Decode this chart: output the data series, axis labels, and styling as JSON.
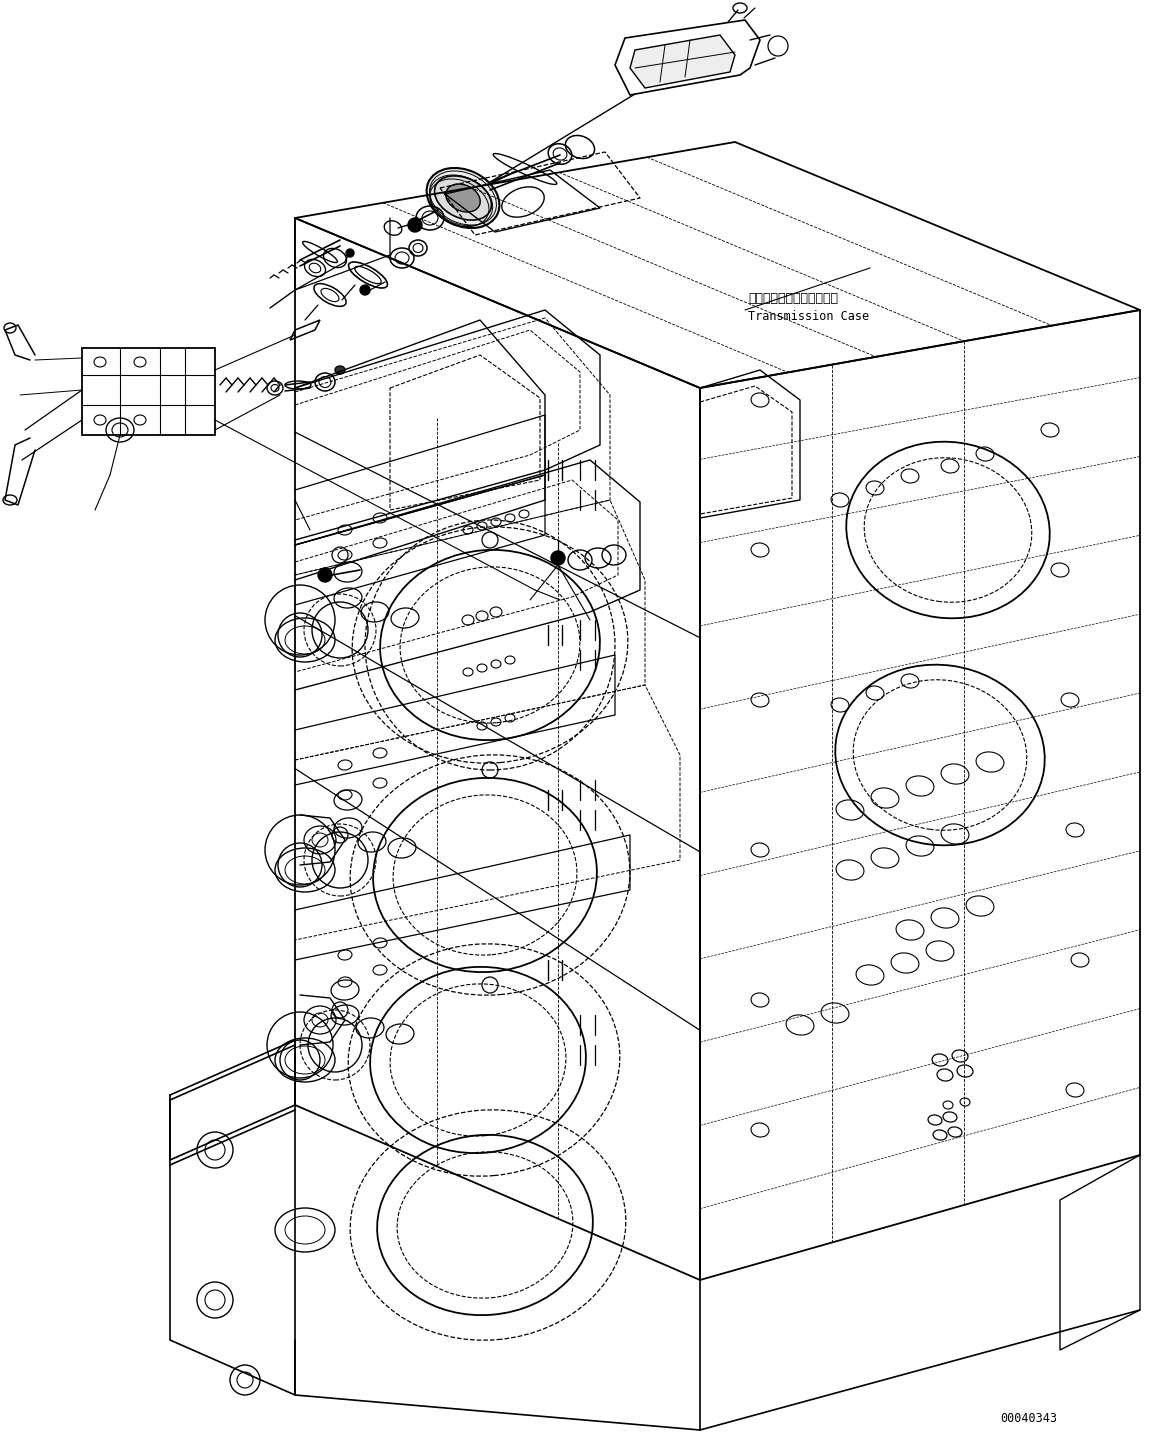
{
  "background_color": "#ffffff",
  "line_color": "#000000",
  "fig_width": 11.63,
  "fig_height": 14.36,
  "dpi": 100,
  "label_transmission_jp": "トランスミッションケース",
  "label_transmission_en": "Transmission Case",
  "part_number": "00040343",
  "font_size_label": 8.5,
  "font_size_part": 8.5
}
